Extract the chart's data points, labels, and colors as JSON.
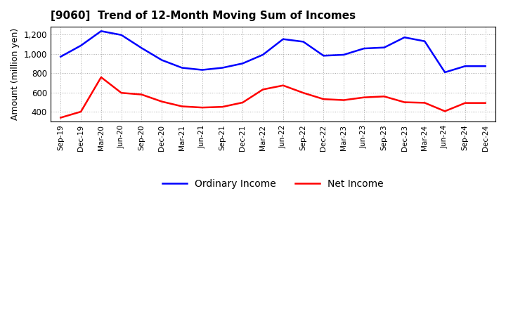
{
  "title": "[9060]  Trend of 12-Month Moving Sum of Incomes",
  "ylabel": "Amount (million yen)",
  "background_color": "#ffffff",
  "grid_color": "#aaaaaa",
  "x_labels": [
    "Sep-19",
    "Dec-19",
    "Mar-20",
    "Jun-20",
    "Sep-20",
    "Dec-20",
    "Mar-21",
    "Jun-21",
    "Sep-21",
    "Dec-21",
    "Mar-22",
    "Jun-22",
    "Sep-22",
    "Dec-22",
    "Mar-23",
    "Jun-23",
    "Sep-23",
    "Dec-23",
    "Mar-24",
    "Jun-24",
    "Sep-24",
    "Dec-24"
  ],
  "ordinary_income": [
    970,
    1085,
    1235,
    1195,
    1060,
    935,
    855,
    833,
    855,
    900,
    990,
    1152,
    1125,
    980,
    990,
    1055,
    1065,
    1170,
    1130,
    808,
    872,
    872
  ],
  "net_income": [
    338,
    400,
    757,
    595,
    578,
    505,
    455,
    443,
    450,
    495,
    630,
    672,
    595,
    530,
    520,
    548,
    558,
    498,
    492,
    405,
    490,
    490
  ],
  "ordinary_income_color": "#0000ff",
  "net_income_color": "#ff0000",
  "ylim_min": 300,
  "ylim_max": 1280,
  "yticks": [
    400,
    600,
    800,
    1000,
    1200
  ],
  "ytick_labels": [
    "400",
    "600",
    "800",
    "1,000",
    "1,200"
  ],
  "legend_labels": [
    "Ordinary Income",
    "Net Income"
  ]
}
